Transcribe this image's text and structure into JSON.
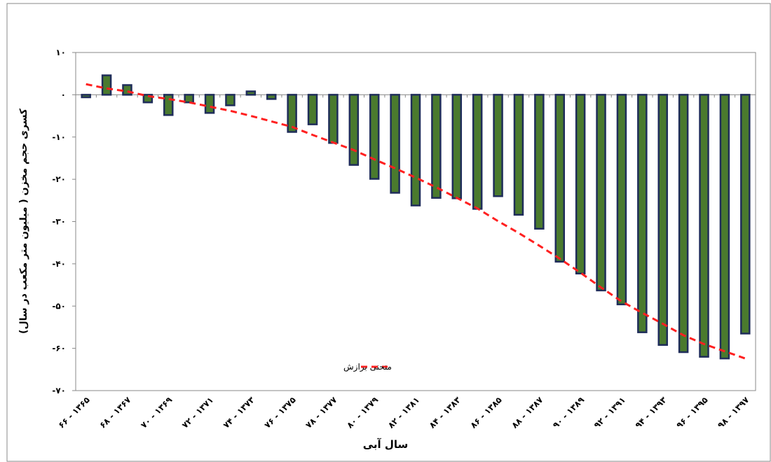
{
  "chart_data": {
    "type": "bar",
    "y_label": "کسری حجم مخزن ( میلیون متر مکعب در سال)",
    "x_label": "سال آبی",
    "categories": [
      "۶۶ - ۱۳۶۵",
      null,
      "۶۸ - ۱۳۶۷",
      null,
      "۷۰ - ۱۳۶۹",
      null,
      "۷۲ - ۱۳۷۱",
      null,
      "۷۴ - ۱۳۷۳",
      null,
      "۷۶ - ۱۳۷۵",
      null,
      "۷۸ - ۱۳۷۷",
      null,
      "۸۰ - ۱۳۷۹",
      null,
      "۸۲ - ۱۳۸۱",
      null,
      "۸۴ - ۱۳۸۳",
      null,
      "۸۶ - ۱۳۸۵",
      null,
      "۸۸ - ۱۳۸۷",
      null,
      "۹۰ - ۱۳۸۹",
      null,
      "۹۲ - ۱۳۹۱",
      null,
      "۹۴ - ۱۳۹۳",
      null,
      "۹۶ - ۱۳۹۵",
      null,
      "۹۸ - ۱۳۹۷"
    ],
    "series": [
      {
        "type": "bar",
        "color": "#4a7a2e",
        "edge_color": "#1f2d5a",
        "values": [
          -0.6,
          4.6,
          2.3,
          -1.8,
          -4.8,
          -1.8,
          -4.3,
          -2.5,
          0.8,
          -1,
          -8.8,
          -7,
          -11.4,
          -16.6,
          -19.9,
          -23.2,
          -26.2,
          -24.4,
          -24.5,
          -27,
          -24,
          -28.4,
          -31.7,
          -39.5,
          -42.3,
          -46.3,
          -49.6,
          -56.2,
          -59.2,
          -60.9,
          -62,
          -62.4,
          -56.5
        ]
      },
      {
        "type": "line",
        "name": "منحنی برازش",
        "color": "#ff2020",
        "dashed": true,
        "values": [
          2.5,
          1.5,
          0.8,
          -0.3,
          -1,
          -1.8,
          -2.8,
          -3.8,
          -5,
          -6.3,
          -7.6,
          -9.5,
          -11.3,
          -13.1,
          -15.3,
          -17.4,
          -19.6,
          -21.9,
          -24.4,
          -26.9,
          -29.9,
          -32.7,
          -35.7,
          -38.8,
          -42.1,
          -45.6,
          -48.9,
          -51.6,
          -54.2,
          -56.9,
          -59,
          -60.7,
          -62.4
        ]
      }
    ],
    "ylim": [
      -70,
      10
    ],
    "yticks": [
      {
        "value": -70,
        "label": "-۷۰"
      },
      {
        "value": -60,
        "label": "-۶۰"
      },
      {
        "value": -50,
        "label": "-۵۰"
      },
      {
        "value": -40,
        "label": "-۴۰"
      },
      {
        "value": -30,
        "label": "-۳۰"
      },
      {
        "value": -20,
        "label": "-۲۰"
      },
      {
        "value": -10,
        "label": "-۱۰"
      },
      {
        "value": 0,
        "label": "۰"
      },
      {
        "value": 10,
        "label": "۱۰"
      }
    ]
  }
}
